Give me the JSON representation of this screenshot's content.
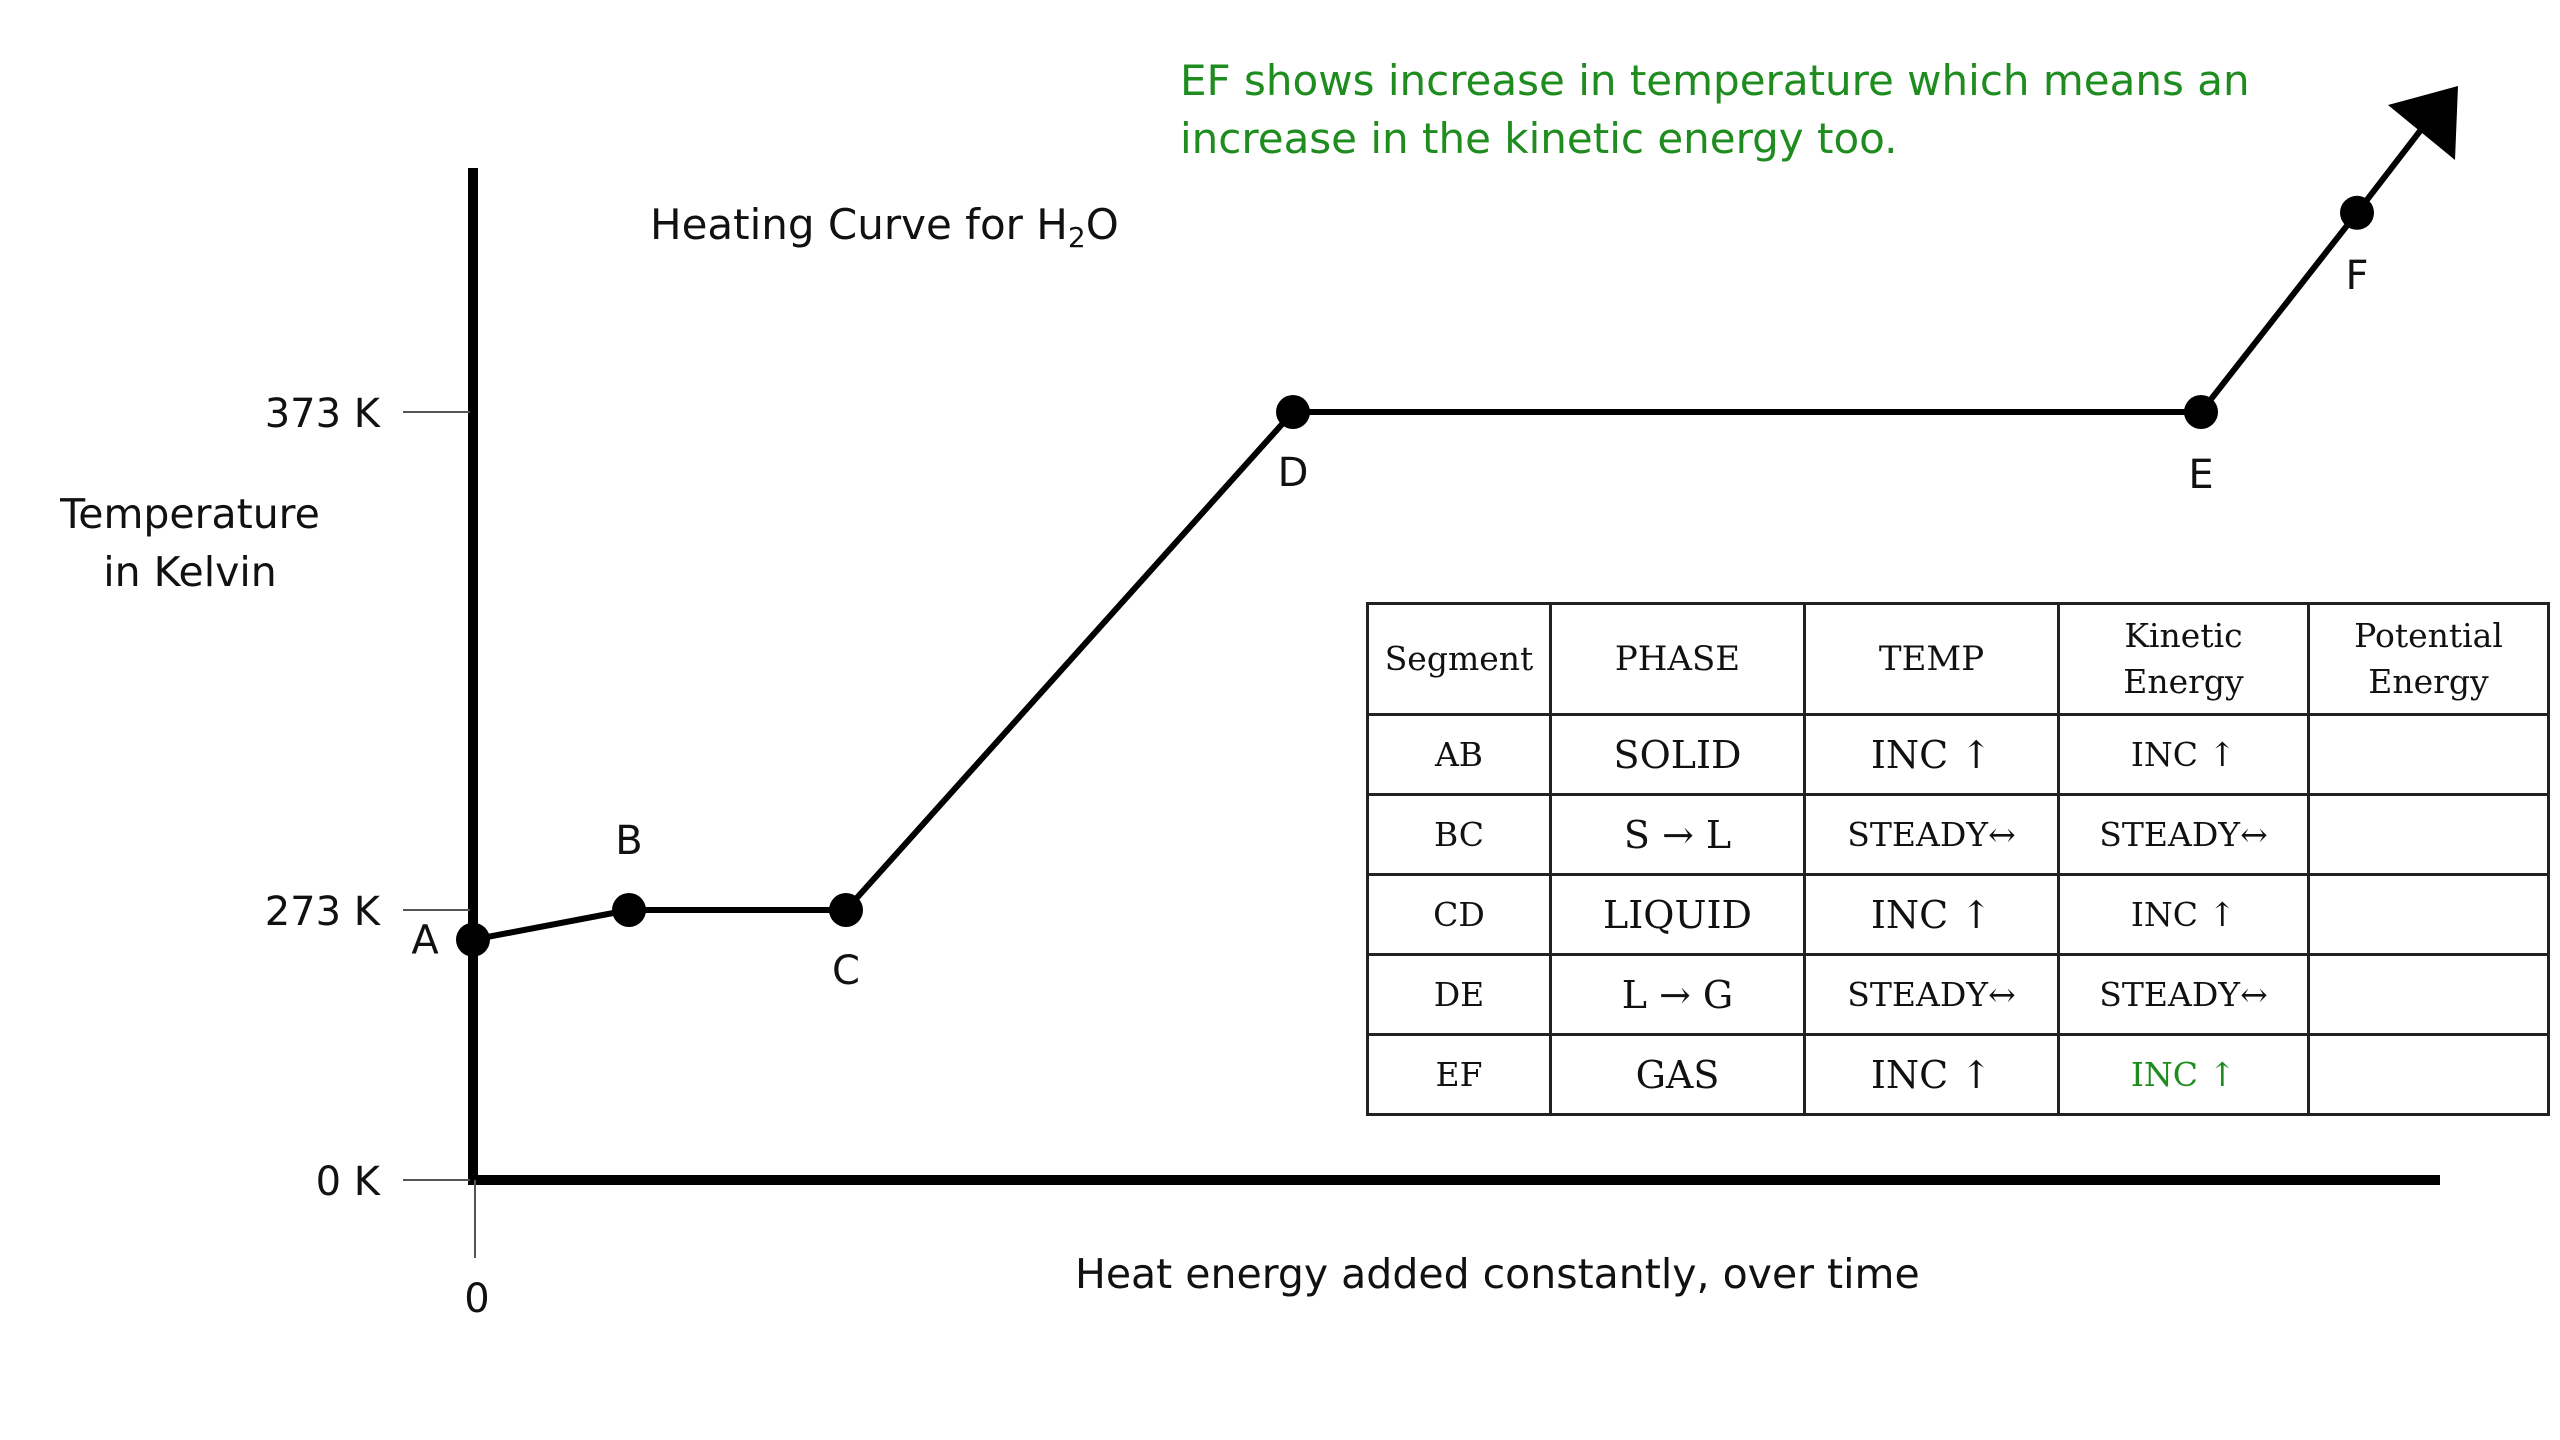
{
  "chart_data": {
    "type": "line",
    "title_main": "Heating Curve for H",
    "title_sub": "2",
    "title_tail": "O",
    "ylabel_line1": "Temperature",
    "ylabel_line2": "in Kelvin",
    "xlabel": "Heat energy added constantly, over time",
    "x_tick": "0",
    "y_ticks": [
      {
        "value": 0,
        "label": "0 K"
      },
      {
        "value": 273,
        "label": "273 K"
      },
      {
        "value": 373,
        "label": "373 K"
      }
    ],
    "points": [
      {
        "label": "A",
        "y": 243
      },
      {
        "label": "B",
        "y": 273
      },
      {
        "label": "C",
        "y": 273
      },
      {
        "label": "D",
        "y": 373
      },
      {
        "label": "E",
        "y": 373
      },
      {
        "label": "F",
        "y": 413
      }
    ],
    "annotation": "EF shows increase in temperature which means an increase in the kinetic energy too.",
    "annotation_color": "#1e8c1e"
  },
  "table": {
    "headers": [
      "Segment",
      "PHASE",
      "TEMP",
      "Kinetic Energy",
      "Potential Energy"
    ],
    "rows": [
      [
        "AB",
        "SOLID",
        "INC ↑",
        "INC ↑",
        ""
      ],
      [
        "BC",
        "S → L",
        "STEADY↔",
        "STEADY↔",
        ""
      ],
      [
        "CD",
        "LIQUID",
        "INC ↑",
        "INC ↑",
        ""
      ],
      [
        "DE",
        "L → G",
        "STEADY↔",
        "STEADY↔",
        ""
      ],
      [
        "EF",
        "GAS",
        "INC ↑",
        "INC ↑",
        ""
      ]
    ],
    "highlight_color": "#1e8c1e"
  }
}
